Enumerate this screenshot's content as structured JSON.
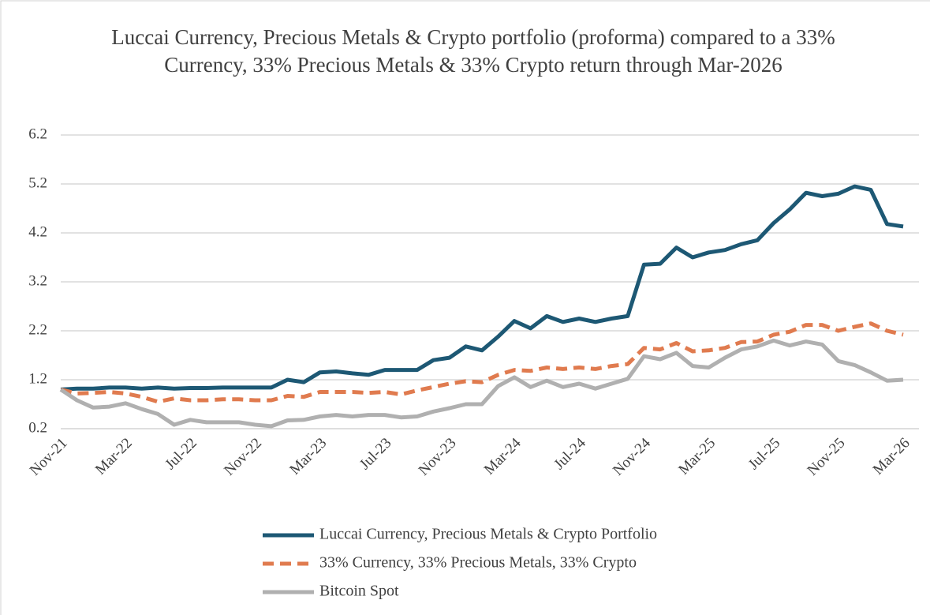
{
  "chart_data": {
    "type": "line",
    "title": "Luccai Currency, Precious Metals & Crypto portfolio (proforma) compared to a 33% Currency, 33% Precious Metals & 33% Crypto return through Mar-2026",
    "categories": [
      "Nov-21",
      null,
      null,
      null,
      "Mar-22",
      null,
      null,
      null,
      "Jul-22",
      null,
      null,
      null,
      "Nov-22",
      null,
      null,
      null,
      "Mar-23",
      null,
      null,
      null,
      "Jul-23",
      null,
      null,
      null,
      "Nov-23",
      null,
      null,
      null,
      "Mar-24",
      null,
      null,
      null,
      "Jul-24",
      null,
      null,
      null,
      "Nov-24",
      null,
      null,
      null,
      "Mar-25",
      null,
      null,
      null,
      "Jul-25",
      null,
      null,
      null,
      "Nov-25",
      null,
      null,
      null,
      "Mar-26"
    ],
    "series": [
      {
        "name": "Luccai Currency, Precious Metals & Crypto Portfolio",
        "color": "#1d5874",
        "dashed": false,
        "values": [
          1.0,
          1.02,
          1.02,
          1.04,
          1.04,
          1.02,
          1.04,
          1.02,
          1.03,
          1.03,
          1.04,
          1.04,
          1.04,
          1.04,
          1.2,
          1.15,
          1.35,
          1.37,
          1.33,
          1.3,
          1.4,
          1.4,
          1.4,
          1.6,
          1.65,
          1.88,
          1.8,
          2.08,
          2.4,
          2.25,
          2.5,
          2.38,
          2.45,
          2.38,
          2.45,
          2.5,
          3.55,
          3.57,
          3.9,
          3.7,
          3.8,
          3.85,
          3.97,
          4.05,
          4.4,
          4.68,
          5.02,
          4.95,
          5.0,
          5.15,
          5.08,
          4.38,
          4.33
        ]
      },
      {
        "name": "33% Currency, 33% Precious Metals, 33% Crypto",
        "color": "#e07b4f",
        "dashed": true,
        "values": [
          1.0,
          0.92,
          0.93,
          0.95,
          0.92,
          0.85,
          0.75,
          0.82,
          0.78,
          0.78,
          0.8,
          0.8,
          0.78,
          0.78,
          0.87,
          0.85,
          0.95,
          0.95,
          0.95,
          0.93,
          0.95,
          0.9,
          0.98,
          1.05,
          1.12,
          1.17,
          1.15,
          1.3,
          1.4,
          1.38,
          1.45,
          1.42,
          1.45,
          1.42,
          1.48,
          1.52,
          1.85,
          1.82,
          1.95,
          1.78,
          1.8,
          1.85,
          1.97,
          1.98,
          2.12,
          2.18,
          2.32,
          2.32,
          2.2,
          2.28,
          2.35,
          2.2,
          2.12
        ]
      },
      {
        "name": "Bitcoin Spot",
        "color": "#b0b0b0",
        "dashed": false,
        "values": [
          1.0,
          0.78,
          0.63,
          0.65,
          0.72,
          0.6,
          0.5,
          0.28,
          0.38,
          0.33,
          0.33,
          0.33,
          0.28,
          0.25,
          0.37,
          0.38,
          0.45,
          0.48,
          0.45,
          0.48,
          0.48,
          0.43,
          0.45,
          0.55,
          0.62,
          0.7,
          0.7,
          1.07,
          1.25,
          1.05,
          1.18,
          1.05,
          1.12,
          1.02,
          1.12,
          1.22,
          1.68,
          1.62,
          1.75,
          1.48,
          1.45,
          1.65,
          1.82,
          1.88,
          2.0,
          1.9,
          1.98,
          1.92,
          1.58,
          1.5,
          1.35,
          1.18,
          1.2
        ]
      }
    ],
    "ylim": [
      0.2,
      6.2
    ],
    "yticks": [
      0.2,
      1.2,
      2.2,
      3.2,
      4.2,
      5.2,
      6.2
    ],
    "grid": true
  }
}
